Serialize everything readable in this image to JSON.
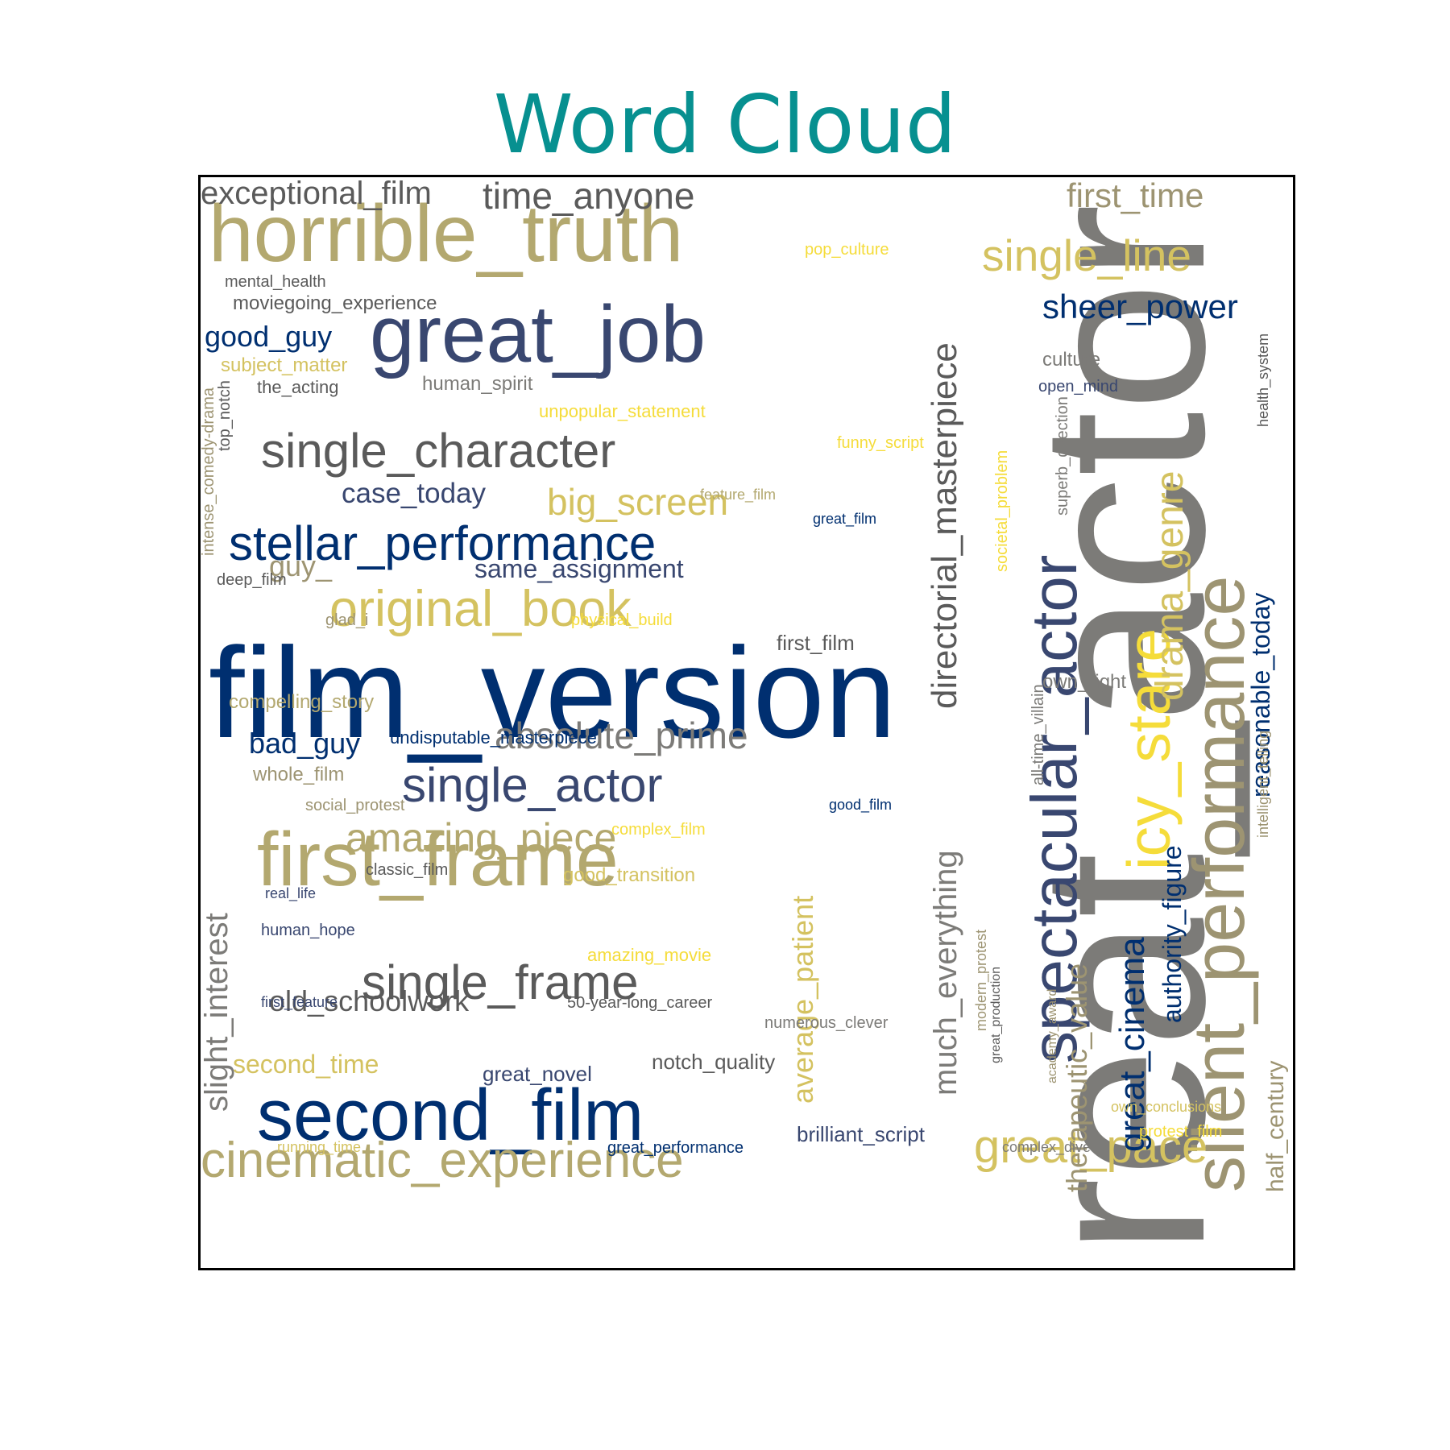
{
  "title": "Word Cloud",
  "colors": {
    "title": "#079090",
    "palette": [
      "#002f70",
      "#394770",
      "#5a5a5a",
      "#7c7b78",
      "#9d9472",
      "#b3a86f",
      "#d4c260",
      "#f5dc3a"
    ]
  },
  "words": [
    {
      "text": "great_actor",
      "color": "#7c7b78"
    },
    {
      "text": "film_version",
      "color": "#002f70"
    },
    {
      "text": "horrible_truth",
      "color": "#b3a86f"
    },
    {
      "text": "great_job",
      "color": "#394770"
    },
    {
      "text": "second_film",
      "color": "#002f70"
    },
    {
      "text": "first_frame",
      "color": "#b3a86f"
    },
    {
      "text": "silent_performance",
      "color": "#9d9472"
    },
    {
      "text": "spectacular_actor",
      "color": "#394770"
    },
    {
      "text": "icy_stare",
      "color": "#f5dc3a"
    },
    {
      "text": "stellar_performance",
      "color": "#002f70"
    },
    {
      "text": "cinematic_experience",
      "color": "#b3a86f"
    },
    {
      "text": "original_book",
      "color": "#d4c260"
    },
    {
      "text": "single_character",
      "color": "#5a5a5a"
    },
    {
      "text": "single_actor",
      "color": "#394770"
    },
    {
      "text": "single_frame",
      "color": "#5a5a5a"
    },
    {
      "text": "great_pace",
      "color": "#d4c260"
    },
    {
      "text": "single_line",
      "color": "#d4c260"
    },
    {
      "text": "directorial_masterpiece",
      "color": "#5a5a5a"
    },
    {
      "text": "drama_genre",
      "color": "#d4c260"
    },
    {
      "text": "amazing_piece",
      "color": "#b3a86f"
    },
    {
      "text": "absolute_prime",
      "color": "#7c7b78"
    },
    {
      "text": "much_everything",
      "color": "#7c7b78"
    },
    {
      "text": "great_cinema",
      "color": "#002f70"
    },
    {
      "text": "slight_interest",
      "color": "#7c7b78"
    },
    {
      "text": "big_screen",
      "color": "#d4c260"
    },
    {
      "text": "sheer_power",
      "color": "#002f70"
    },
    {
      "text": "first_time",
      "color": "#9d9472"
    },
    {
      "text": "time_anyone",
      "color": "#5a5a5a"
    },
    {
      "text": "exceptional_film",
      "color": "#5a5a5a"
    },
    {
      "text": "authority_figure",
      "color": "#002f70"
    },
    {
      "text": "reasonable_today",
      "color": "#002f70"
    },
    {
      "text": "half_century",
      "color": "#9d9472"
    },
    {
      "text": "therapeutic_value",
      "color": "#9d9472"
    },
    {
      "text": "average_patient",
      "color": "#d4c260"
    },
    {
      "text": "old_schoolwork",
      "color": "#5a5a5a"
    },
    {
      "text": "case_today",
      "color": "#394770"
    },
    {
      "text": "good_guy",
      "color": "#002f70"
    },
    {
      "text": "bad_guy",
      "color": "#002f70"
    },
    {
      "text": "same_assignment",
      "color": "#394770"
    },
    {
      "text": "guy_",
      "color": "#9d9472"
    },
    {
      "text": "second_time",
      "color": "#d4c260"
    },
    {
      "text": "brilliant_script",
      "color": "#394770"
    },
    {
      "text": "notch_quality",
      "color": "#5a5a5a"
    },
    {
      "text": "great_novel",
      "color": "#394770"
    },
    {
      "text": "first_film",
      "color": "#5a5a5a"
    },
    {
      "text": "culture",
      "color": "#7c7b78"
    },
    {
      "text": "own_right",
      "color": "#7c7b78"
    },
    {
      "text": "human_spirit",
      "color": "#7c7b78"
    },
    {
      "text": "moviegoing_experience",
      "color": "#5a5a5a"
    },
    {
      "text": "mental_health",
      "color": "#5a5a5a"
    },
    {
      "text": "subject_matter",
      "color": "#d4c260"
    },
    {
      "text": "the_acting",
      "color": "#5a5a5a"
    },
    {
      "text": "unpopular_statement",
      "color": "#f5dc3a"
    },
    {
      "text": "funny_script",
      "color": "#f5dc3a"
    },
    {
      "text": "pop_culture",
      "color": "#f5dc3a"
    },
    {
      "text": "open_mind",
      "color": "#394770"
    },
    {
      "text": "feature_film",
      "color": "#b3a86f"
    },
    {
      "text": "great_film",
      "color": "#002f70"
    },
    {
      "text": "deep_film",
      "color": "#5a5a5a"
    },
    {
      "text": "glad_i",
      "color": "#9d9472"
    },
    {
      "text": "physical_build",
      "color": "#f5dc3a"
    },
    {
      "text": "compelling_story",
      "color": "#b3a86f"
    },
    {
      "text": "undisputable_masterpiece",
      "color": "#002f70"
    },
    {
      "text": "whole_film",
      "color": "#9d9472"
    },
    {
      "text": "social_protest",
      "color": "#9d9472"
    },
    {
      "text": "complex_film",
      "color": "#f5dc3a"
    },
    {
      "text": "real_life",
      "color": "#394770"
    },
    {
      "text": "classic_film",
      "color": "#5a5a5a"
    },
    {
      "text": "good_transition",
      "color": "#d4c260"
    },
    {
      "text": "good_film",
      "color": "#002f70"
    },
    {
      "text": "human_hope",
      "color": "#394770"
    },
    {
      "text": "amazing_movie",
      "color": "#f5dc3a"
    },
    {
      "text": "first_feature",
      "color": "#394770"
    },
    {
      "text": "50-year-long_career",
      "color": "#5a5a5a"
    },
    {
      "text": "numerous_clever",
      "color": "#7c7b78"
    },
    {
      "text": "running_time",
      "color": "#d4c260"
    },
    {
      "text": "great_performance",
      "color": "#002f70"
    },
    {
      "text": "complex_dive",
      "color": "#7c7b78"
    },
    {
      "text": "protest_film",
      "color": "#f5dc3a"
    },
    {
      "text": "own_conclusions",
      "color": "#d4c260"
    },
    {
      "text": "top_notch",
      "color": "#5a5a5a"
    },
    {
      "text": "intense_comedy-drama",
      "color": "#9d9472"
    },
    {
      "text": "societal_problem",
      "color": "#f5dc3a"
    },
    {
      "text": "superb_direction",
      "color": "#7c7b78"
    },
    {
      "text": "all-time_villain",
      "color": "#7c7b78"
    },
    {
      "text": "health_system",
      "color": "#5a5a5a"
    },
    {
      "text": "intelligent_telling",
      "color": "#9d9472"
    },
    {
      "text": "modern_protest",
      "color": "#9d9472"
    },
    {
      "text": "great_production",
      "color": "#5a5a5a"
    },
    {
      "text": "academy_award",
      "color": "#9d9472"
    }
  ]
}
